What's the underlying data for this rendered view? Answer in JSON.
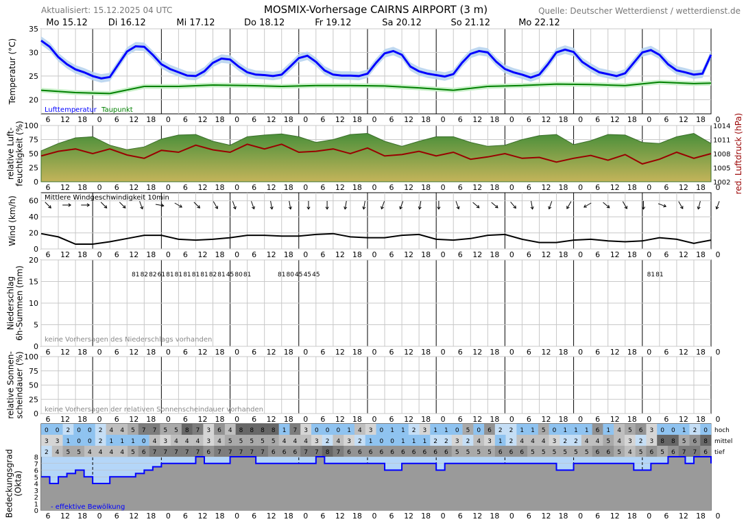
{
  "header": {
    "updated": "Aktualisiert: 15.12.2025 04 UTC",
    "title": "MOSMIX-Vorhersage CAIRNS AIRPORT (3 m)",
    "source": "Quelle: Deutscher Wetterdienst / wetterdienst.de"
  },
  "days": [
    "Mo 15.12",
    "Di 16.12",
    "Mi 17.12",
    "Do 18.12",
    "Fr 19.12",
    "Sa 20.12",
    "So 21.12",
    "Mo 22.12"
  ],
  "hour_ticks": [
    "6",
    "12",
    "18",
    "0"
  ],
  "colors": {
    "temp": "#0000ff",
    "temp_band": "#b8d4f0",
    "dew": "#008000",
    "dew_band": "#c8f0c8",
    "pressure": "#990000",
    "humidity_top": "#4a8f3a",
    "humidity_bottom": "#c4b45a",
    "wind": "#000000",
    "cloud_low": "#9a9a9a",
    "cloud_sky": "#b4d6f8",
    "cloud_eff": "#0000ff"
  },
  "chart_data": [
    {
      "type": "line",
      "id": "temperature",
      "ylabel": "Temperatur (°C)",
      "ylim": [
        17,
        35
      ],
      "yticks": [
        20,
        25,
        30,
        35
      ],
      "series": [
        {
          "name": "Lufttemperatur",
          "x_hours": [
            0,
            3,
            6,
            9,
            12,
            15,
            18,
            21,
            24,
            27,
            30,
            33,
            36,
            39,
            42,
            45,
            48,
            51,
            54,
            57,
            60,
            63,
            66,
            69,
            72,
            75,
            78,
            81,
            84,
            87,
            90,
            93,
            96,
            99,
            102,
            105,
            108,
            111,
            114,
            117,
            120,
            123,
            126,
            129,
            132,
            135,
            138,
            141,
            144,
            147,
            150,
            153,
            156,
            159,
            162,
            165,
            168,
            171,
            174,
            177,
            180,
            183,
            186,
            189,
            192,
            195,
            198,
            201,
            204,
            207,
            210,
            213,
            216,
            219,
            222,
            225,
            228,
            231,
            234
          ],
          "values": [
            32.5,
            31.2,
            29.0,
            27.5,
            26.4,
            25.8,
            25.0,
            24.5,
            24.8,
            27.5,
            30.2,
            31.3,
            31.2,
            29.5,
            27.5,
            26.5,
            25.8,
            25.1,
            25.0,
            26.0,
            27.8,
            28.7,
            28.5,
            27.0,
            25.8,
            25.3,
            25.2,
            25.0,
            25.3,
            27.0,
            28.8,
            29.3,
            28.0,
            26.2,
            25.3,
            25.1,
            25.1,
            25.0,
            25.5,
            27.8,
            29.8,
            30.3,
            29.5,
            27.0,
            26.0,
            25.5,
            25.2,
            24.9,
            25.4,
            27.8,
            29.7,
            30.3,
            30.0,
            28.0,
            26.5,
            25.8,
            25.3,
            24.7,
            25.3,
            27.5,
            30.0,
            30.6,
            30.1,
            28.0,
            26.8,
            25.8,
            25.4,
            25.0,
            25.6,
            27.8,
            30.0,
            30.5,
            29.5,
            27.5,
            26.2,
            25.8,
            25.3,
            25.5,
            29.5
          ]
        },
        {
          "name": "Taupunkt",
          "x_hours": [
            0,
            12,
            24,
            36,
            48,
            60,
            72,
            84,
            96,
            108,
            120,
            132,
            144,
            156,
            168,
            180,
            192,
            204,
            216,
            228,
            234
          ],
          "values": [
            22.0,
            21.5,
            21.3,
            22.8,
            22.8,
            23.1,
            23.0,
            22.8,
            23.0,
            23.0,
            22.9,
            22.5,
            22.0,
            22.8,
            23.0,
            23.3,
            23.2,
            23.0,
            23.7,
            23.4,
            23.5
          ]
        }
      ],
      "legend": [
        "Lufttemperatur",
        "Taupunkt"
      ]
    },
    {
      "type": "area",
      "id": "humidity_pressure",
      "ylabel": "relative Luft-\nfeuchtigkeit (%)",
      "ylabel_right": "red. Luftdruck (hPa)",
      "ylim": [
        0,
        100
      ],
      "yticks": [
        0,
        25,
        50,
        75,
        100
      ],
      "y2lim": [
        1002,
        1014
      ],
      "y2ticks": [
        1002,
        1005,
        1008,
        1011,
        1014
      ],
      "humidity": {
        "x_hours": [
          0,
          6,
          12,
          18,
          24,
          30,
          36,
          42,
          48,
          54,
          60,
          66,
          72,
          78,
          84,
          90,
          96,
          102,
          108,
          114,
          120,
          126,
          132,
          138,
          144,
          150,
          156,
          162,
          168,
          174,
          180,
          186,
          192,
          198,
          204,
          210,
          216,
          222,
          228,
          234
        ],
        "values": [
          55,
          68,
          78,
          80,
          65,
          57,
          62,
          76,
          83,
          84,
          72,
          65,
          80,
          83,
          85,
          80,
          70,
          75,
          84,
          86,
          72,
          63,
          72,
          80,
          80,
          70,
          63,
          65,
          75,
          82,
          84,
          66,
          73,
          84,
          83,
          70,
          68,
          80,
          86,
          68
        ]
      },
      "pressure": {
        "x_hours": [
          0,
          6,
          12,
          18,
          24,
          30,
          36,
          42,
          48,
          54,
          60,
          66,
          72,
          78,
          84,
          90,
          96,
          102,
          108,
          114,
          120,
          126,
          132,
          138,
          144,
          150,
          156,
          162,
          168,
          174,
          180,
          186,
          192,
          198,
          204,
          210,
          216,
          222,
          228,
          234
        ],
        "values": [
          1007.5,
          1008.5,
          1009.0,
          1008.0,
          1009.0,
          1007.7,
          1007.0,
          1008.7,
          1008.3,
          1009.8,
          1008.8,
          1008.3,
          1010.0,
          1009.0,
          1010.0,
          1008.3,
          1008.5,
          1009.0,
          1008.0,
          1009.2,
          1007.5,
          1007.8,
          1008.5,
          1007.5,
          1008.3,
          1006.8,
          1007.3,
          1008.0,
          1007.0,
          1007.2,
          1006.2,
          1007.0,
          1007.6,
          1006.6,
          1007.8,
          1005.8,
          1006.8,
          1008.3,
          1007.0,
          1008.0
        ]
      }
    },
    {
      "type": "line",
      "id": "wind",
      "ylabel": "Wind (km/h)",
      "title": "Mittlere Windgeschwindigkeit 10min",
      "ylim": [
        0,
        70
      ],
      "yticks": [
        0,
        20,
        40,
        60
      ],
      "x_hours": [
        0,
        6,
        12,
        18,
        24,
        30,
        36,
        42,
        48,
        54,
        60,
        66,
        72,
        78,
        84,
        90,
        96,
        102,
        108,
        114,
        120,
        126,
        132,
        138,
        144,
        150,
        156,
        162,
        168,
        174,
        180,
        186,
        192,
        198,
        204,
        210,
        216,
        222,
        228,
        234
      ],
      "values": [
        19,
        15,
        6,
        6,
        9,
        13,
        17,
        17,
        12,
        11,
        12,
        14,
        17,
        17,
        16,
        16,
        18,
        19,
        15,
        14,
        14,
        17,
        18,
        12,
        11,
        13,
        17,
        18,
        12,
        8,
        8,
        11,
        12,
        10,
        9,
        10,
        14,
        12,
        7,
        11
      ],
      "direction_deg": [
        135,
        90,
        90,
        135,
        135,
        160,
        120,
        100,
        120,
        135,
        150,
        160,
        160,
        170,
        170,
        180,
        180,
        190,
        190,
        200,
        200,
        200,
        190,
        180,
        160,
        130,
        130,
        140,
        170,
        200,
        210,
        240,
        110,
        130,
        150,
        180,
        110,
        150,
        195,
        200
      ]
    },
    {
      "type": "bar",
      "id": "precipitation",
      "ylabel": "Niederschlag\n6h-Summen (mm)",
      "ylim": [
        0,
        20
      ],
      "yticks": [
        0,
        5,
        10,
        15,
        20
      ],
      "note": "keine Vorhersagen des Niederschlags vorhanden",
      "probability_labels": [
        {
          "x_hours": 33,
          "label": "81"
        },
        {
          "x_hours": 36,
          "label": "82"
        },
        {
          "x_hours": 39,
          "label": "82"
        },
        {
          "x_hours": 42,
          "label": "61"
        },
        {
          "x_hours": 45,
          "label": "81"
        },
        {
          "x_hours": 48,
          "label": "81"
        },
        {
          "x_hours": 51,
          "label": "81"
        },
        {
          "x_hours": 54,
          "label": "81"
        },
        {
          "x_hours": 57,
          "label": "81"
        },
        {
          "x_hours": 60,
          "label": "82"
        },
        {
          "x_hours": 63,
          "label": "81"
        },
        {
          "x_hours": 66,
          "label": "45"
        },
        {
          "x_hours": 69,
          "label": "80"
        },
        {
          "x_hours": 72,
          "label": "81"
        },
        {
          "x_hours": 84,
          "label": "81"
        },
        {
          "x_hours": 87,
          "label": "80"
        },
        {
          "x_hours": 90,
          "label": "45"
        },
        {
          "x_hours": 93,
          "label": "45"
        },
        {
          "x_hours": 96,
          "label": "45"
        },
        {
          "x_hours": 213,
          "label": "81"
        },
        {
          "x_hours": 216,
          "label": "81"
        }
      ]
    },
    {
      "type": "bar",
      "id": "sunshine",
      "ylabel": "relative Sonnen-\nscheindauer (%)",
      "ylim": [
        0,
        100
      ],
      "yticks": [
        0,
        25,
        50,
        75,
        100
      ],
      "note": "keine Vorhersagen der relativen Sonnenscheindauer vorhanden"
    },
    {
      "type": "heatmap",
      "id": "cloud_layers",
      "rows": [
        {
          "name": "hoch",
          "values": [
            0,
            0,
            2,
            0,
            0,
            2,
            4,
            4,
            5,
            7,
            7,
            5,
            5,
            8,
            7,
            3,
            6,
            4,
            8,
            8,
            8,
            8,
            1,
            7,
            3,
            0,
            0,
            0,
            1,
            4,
            3,
            0,
            1,
            1,
            2,
            3,
            1,
            1,
            0,
            5,
            0,
            6,
            2,
            2,
            1,
            1,
            5,
            0,
            1,
            1,
            1,
            6,
            1,
            4,
            5,
            6,
            3,
            0,
            0,
            1,
            2,
            0
          ]
        },
        {
          "name": "mittel",
          "values": [
            3,
            3,
            1,
            0,
            0,
            2,
            1,
            1,
            1,
            0,
            4,
            3,
            4,
            4,
            4,
            3,
            4,
            5,
            5,
            5,
            5,
            5,
            4,
            4,
            4,
            3,
            2,
            4,
            3,
            2,
            1,
            0,
            0,
            1,
            1,
            1,
            2,
            2,
            3,
            2,
            4,
            3,
            1,
            2,
            4,
            4,
            4,
            3,
            2,
            2,
            4,
            4,
            5,
            4,
            3,
            2,
            3,
            8,
            8,
            5,
            6,
            8
          ]
        },
        {
          "name": "tief",
          "values": [
            2,
            4,
            5,
            5,
            4,
            4,
            4,
            4,
            5,
            6,
            7,
            7,
            7,
            7,
            7,
            6,
            7,
            7,
            7,
            7,
            7,
            6,
            6,
            6,
            7,
            7,
            8,
            7,
            6,
            6,
            6,
            6,
            6,
            6,
            6,
            6,
            6,
            6,
            5,
            5,
            5,
            5,
            6,
            6,
            6,
            5,
            5,
            5,
            5,
            5,
            5,
            6,
            6,
            5,
            4,
            5,
            6,
            5,
            6,
            7,
            7,
            6
          ]
        }
      ],
      "row_labels": [
        "hoch",
        "mittel",
        "tief"
      ]
    },
    {
      "type": "area",
      "id": "cloud_cover",
      "ylabel": "Bedeckungsgrad\n(Okta)",
      "ylim": [
        0,
        8
      ],
      "yticks": [
        0,
        1,
        2,
        3,
        4,
        5,
        6,
        7,
        8
      ],
      "legend": [
        "- effektive Bewölkung"
      ],
      "x_hours": [
        0,
        3,
        6,
        9,
        12,
        15,
        18,
        21,
        24,
        27,
        30,
        33,
        36,
        39,
        42,
        45,
        48,
        51,
        54,
        57,
        60,
        63,
        66,
        69,
        72,
        75,
        78,
        81,
        84,
        87,
        90,
        93,
        96,
        99,
        102,
        105,
        108,
        111,
        114,
        117,
        120,
        123,
        126,
        129,
        132,
        135,
        138,
        141,
        144,
        147,
        150,
        153,
        156,
        159,
        162,
        165,
        168,
        171,
        174,
        177,
        180,
        183,
        186,
        189,
        192,
        195,
        198,
        201,
        204,
        207,
        210,
        213,
        216,
        219,
        222,
        225,
        228,
        231,
        234
      ],
      "values": [
        5,
        4,
        5,
        5.5,
        6,
        5,
        4,
        4,
        5,
        5,
        5,
        5.5,
        6,
        6.5,
        7,
        7,
        7,
        7,
        8,
        7,
        7,
        7,
        8,
        8,
        8,
        7,
        7,
        7,
        7,
        7,
        7,
        7,
        8,
        7,
        7,
        7,
        7,
        7,
        7,
        7,
        6,
        6,
        7,
        7,
        7,
        7,
        6,
        7,
        7,
        7,
        7,
        7,
        7,
        7,
        7,
        7,
        7,
        7,
        7,
        7,
        6,
        6,
        7,
        7,
        7,
        7,
        7,
        7,
        7,
        6,
        6,
        7,
        7,
        8,
        8,
        7,
        8,
        8,
        7
      ]
    }
  ]
}
